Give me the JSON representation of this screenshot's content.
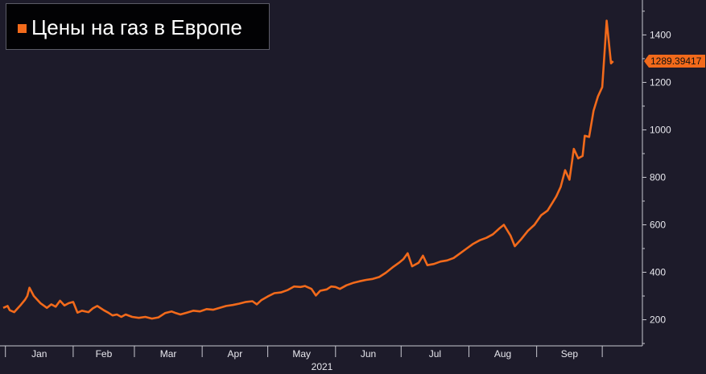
{
  "legend": {
    "label": "Цены на газ в Европе"
  },
  "colors": {
    "series": "#f26a1b",
    "background": "#1d1b2a",
    "axis": "#c8c8d0",
    "legend_bg": "#020204"
  },
  "chart_data": {
    "type": "line",
    "title": "Цены на газ в Европе",
    "xlabel": "2021",
    "ylabel": "",
    "y_axis_side": "right",
    "ylim": [
      90,
      1520
    ],
    "y_ticks": [
      200,
      400,
      600,
      800,
      1000,
      1200,
      1400
    ],
    "x_ticks": [
      {
        "label": "Jan",
        "date": "2021-01-01"
      },
      {
        "label": "Feb",
        "date": "2021-02-01"
      },
      {
        "label": "Mar",
        "date": "2021-03-01"
      },
      {
        "label": "Apr",
        "date": "2021-04-01"
      },
      {
        "label": "May",
        "date": "2021-05-01"
      },
      {
        "label": "Jun",
        "date": "2021-06-01"
      },
      {
        "label": "Jul",
        "date": "2021-07-01"
      },
      {
        "label": "Aug",
        "date": "2021-08-01"
      },
      {
        "label": "Sep",
        "date": "2021-09-01"
      }
    ],
    "x_range": [
      "2020-12-31",
      "2021-10-12"
    ],
    "year_label": "2021",
    "last_value_label": "1289.39417",
    "legend_position": "top-left",
    "grid": false,
    "series": [
      {
        "name": "Цены на газ в Европе",
        "points": [
          [
            "2020-12-31",
            250
          ],
          [
            "2021-01-02",
            258
          ],
          [
            "2021-01-03",
            240
          ],
          [
            "2021-01-05",
            232
          ],
          [
            "2021-01-08",
            262
          ],
          [
            "2021-01-10",
            285
          ],
          [
            "2021-01-11",
            300
          ],
          [
            "2021-01-12",
            335
          ],
          [
            "2021-01-14",
            300
          ],
          [
            "2021-01-17",
            270
          ],
          [
            "2021-01-20",
            250
          ],
          [
            "2021-01-22",
            265
          ],
          [
            "2021-01-24",
            255
          ],
          [
            "2021-01-26",
            280
          ],
          [
            "2021-01-28",
            260
          ],
          [
            "2021-01-30",
            270
          ],
          [
            "2021-02-01",
            275
          ],
          [
            "2021-02-03",
            230
          ],
          [
            "2021-02-05",
            238
          ],
          [
            "2021-02-08",
            232
          ],
          [
            "2021-02-10",
            248
          ],
          [
            "2021-02-12",
            258
          ],
          [
            "2021-02-15",
            240
          ],
          [
            "2021-02-17",
            230
          ],
          [
            "2021-02-19",
            218
          ],
          [
            "2021-02-21",
            222
          ],
          [
            "2021-02-23",
            212
          ],
          [
            "2021-02-25",
            222
          ],
          [
            "2021-02-28",
            212
          ],
          [
            "2021-03-03",
            208
          ],
          [
            "2021-03-06",
            212
          ],
          [
            "2021-03-09",
            205
          ],
          [
            "2021-03-12",
            210
          ],
          [
            "2021-03-15",
            228
          ],
          [
            "2021-03-18",
            235
          ],
          [
            "2021-03-20",
            228
          ],
          [
            "2021-03-22",
            222
          ],
          [
            "2021-03-25",
            230
          ],
          [
            "2021-03-28",
            238
          ],
          [
            "2021-03-31",
            235
          ],
          [
            "2021-04-03",
            245
          ],
          [
            "2021-04-06",
            242
          ],
          [
            "2021-04-09",
            250
          ],
          [
            "2021-04-12",
            258
          ],
          [
            "2021-04-15",
            262
          ],
          [
            "2021-04-18",
            268
          ],
          [
            "2021-04-21",
            275
          ],
          [
            "2021-04-24",
            278
          ],
          [
            "2021-04-26",
            265
          ],
          [
            "2021-04-28",
            282
          ],
          [
            "2021-05-01",
            298
          ],
          [
            "2021-05-04",
            312
          ],
          [
            "2021-05-07",
            315
          ],
          [
            "2021-05-10",
            325
          ],
          [
            "2021-05-13",
            340
          ],
          [
            "2021-05-16",
            338
          ],
          [
            "2021-05-18",
            342
          ],
          [
            "2021-05-21",
            330
          ],
          [
            "2021-05-23",
            302
          ],
          [
            "2021-05-25",
            322
          ],
          [
            "2021-05-28",
            328
          ],
          [
            "2021-05-30",
            340
          ],
          [
            "2021-06-01",
            338
          ],
          [
            "2021-06-03",
            330
          ],
          [
            "2021-06-06",
            345
          ],
          [
            "2021-06-09",
            355
          ],
          [
            "2021-06-12",
            362
          ],
          [
            "2021-06-15",
            368
          ],
          [
            "2021-06-18",
            372
          ],
          [
            "2021-06-21",
            380
          ],
          [
            "2021-06-24",
            398
          ],
          [
            "2021-06-27",
            420
          ],
          [
            "2021-06-30",
            440
          ],
          [
            "2021-07-02",
            455
          ],
          [
            "2021-07-04",
            480
          ],
          [
            "2021-07-06",
            425
          ],
          [
            "2021-07-09",
            440
          ],
          [
            "2021-07-11",
            470
          ],
          [
            "2021-07-13",
            430
          ],
          [
            "2021-07-16",
            435
          ],
          [
            "2021-07-19",
            445
          ],
          [
            "2021-07-22",
            450
          ],
          [
            "2021-07-25",
            460
          ],
          [
            "2021-07-28",
            480
          ],
          [
            "2021-07-31",
            500
          ],
          [
            "2021-08-03",
            520
          ],
          [
            "2021-08-06",
            535
          ],
          [
            "2021-08-09",
            545
          ],
          [
            "2021-08-12",
            560
          ],
          [
            "2021-08-15",
            585
          ],
          [
            "2021-08-17",
            600
          ],
          [
            "2021-08-20",
            555
          ],
          [
            "2021-08-22",
            510
          ],
          [
            "2021-08-25",
            540
          ],
          [
            "2021-08-28",
            575
          ],
          [
            "2021-08-31",
            600
          ],
          [
            "2021-09-03",
            640
          ],
          [
            "2021-09-06",
            660
          ],
          [
            "2021-09-08",
            690
          ],
          [
            "2021-09-10",
            720
          ],
          [
            "2021-09-12",
            760
          ],
          [
            "2021-09-14",
            830
          ],
          [
            "2021-09-16",
            790
          ],
          [
            "2021-09-18",
            920
          ],
          [
            "2021-09-20",
            880
          ],
          [
            "2021-09-22",
            890
          ],
          [
            "2021-09-23",
            975
          ],
          [
            "2021-09-25",
            970
          ],
          [
            "2021-09-27",
            1080
          ],
          [
            "2021-09-29",
            1140
          ],
          [
            "2021-10-01",
            1180
          ],
          [
            "2021-10-03",
            1460
          ],
          [
            "2021-10-05",
            1280
          ],
          [
            "2021-10-06",
            1289.39417
          ]
        ]
      }
    ]
  }
}
